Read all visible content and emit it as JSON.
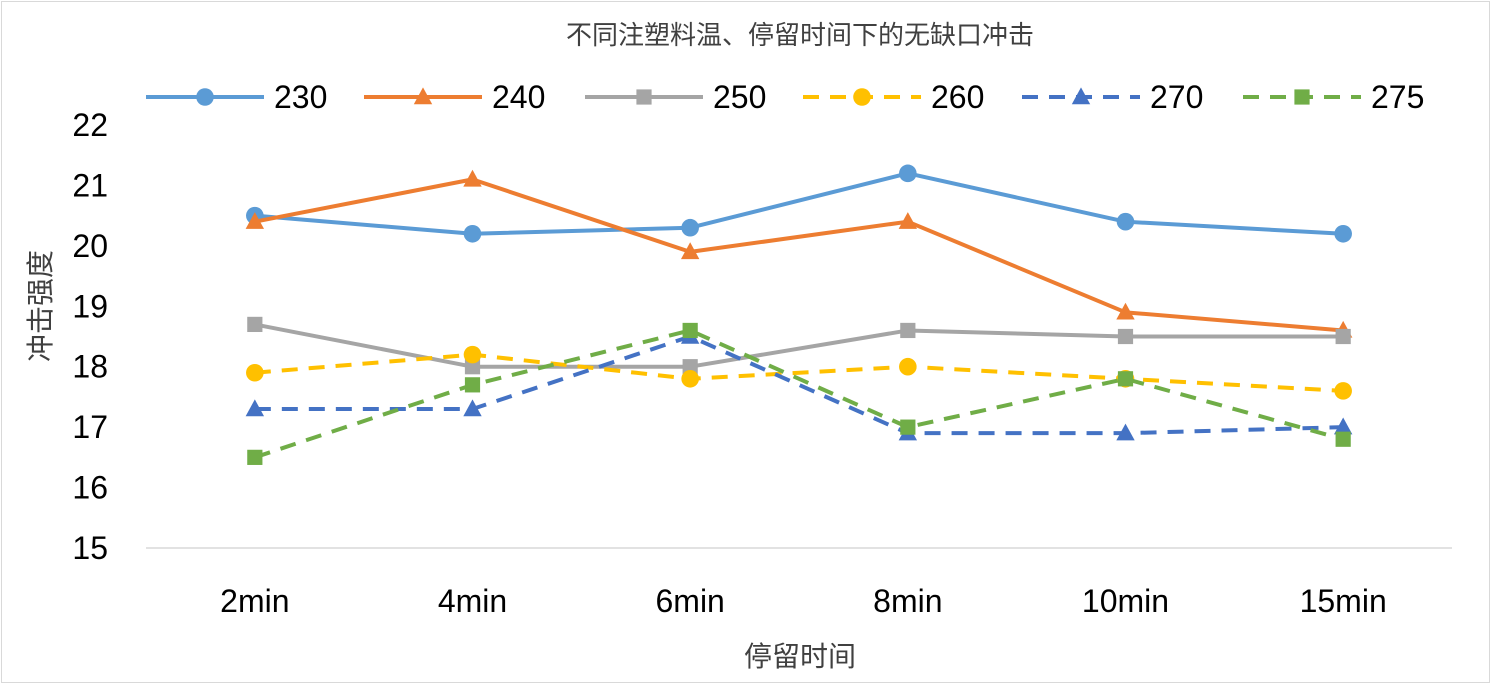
{
  "chart_data": {
    "type": "line",
    "title": "不同注塑料温、停留时间下的无缺口冲击",
    "xlabel": "停留时间",
    "ylabel": "冲击强度",
    "categories": [
      "2min",
      "4min",
      "6min",
      "8min",
      "10min",
      "15min"
    ],
    "ylim": [
      15,
      22
    ],
    "yticks": [
      15,
      16,
      17,
      18,
      19,
      20,
      21,
      22
    ],
    "ytick_labels": [
      "15",
      "16",
      "17",
      "18",
      "19",
      "20",
      "21",
      "22"
    ],
    "legend_position": "top",
    "grid": false,
    "series": [
      {
        "name": "230",
        "values": [
          20.5,
          20.2,
          20.3,
          21.2,
          20.4,
          20.2
        ],
        "color": "#5b9bd5",
        "marker": "circle",
        "dashed": false
      },
      {
        "name": "240",
        "values": [
          20.4,
          21.1,
          19.9,
          20.4,
          18.9,
          18.6
        ],
        "color": "#ed7d31",
        "marker": "triangle",
        "dashed": false
      },
      {
        "name": "250",
        "values": [
          18.7,
          18.0,
          18.0,
          18.6,
          18.5,
          18.5
        ],
        "color": "#a5a5a5",
        "marker": "square",
        "dashed": false
      },
      {
        "name": "260",
        "values": [
          17.9,
          18.2,
          17.8,
          18.0,
          17.8,
          17.6
        ],
        "color": "#ffc000",
        "marker": "circle",
        "dashed": true
      },
      {
        "name": "270",
        "values": [
          17.3,
          17.3,
          18.5,
          16.9,
          16.9,
          17.0
        ],
        "color": "#4472c4",
        "marker": "triangle",
        "dashed": true
      },
      {
        "name": "275",
        "values": [
          16.5,
          17.7,
          18.6,
          17.0,
          17.8,
          16.8
        ],
        "color": "#70ad47",
        "marker": "square",
        "dashed": true
      }
    ]
  }
}
